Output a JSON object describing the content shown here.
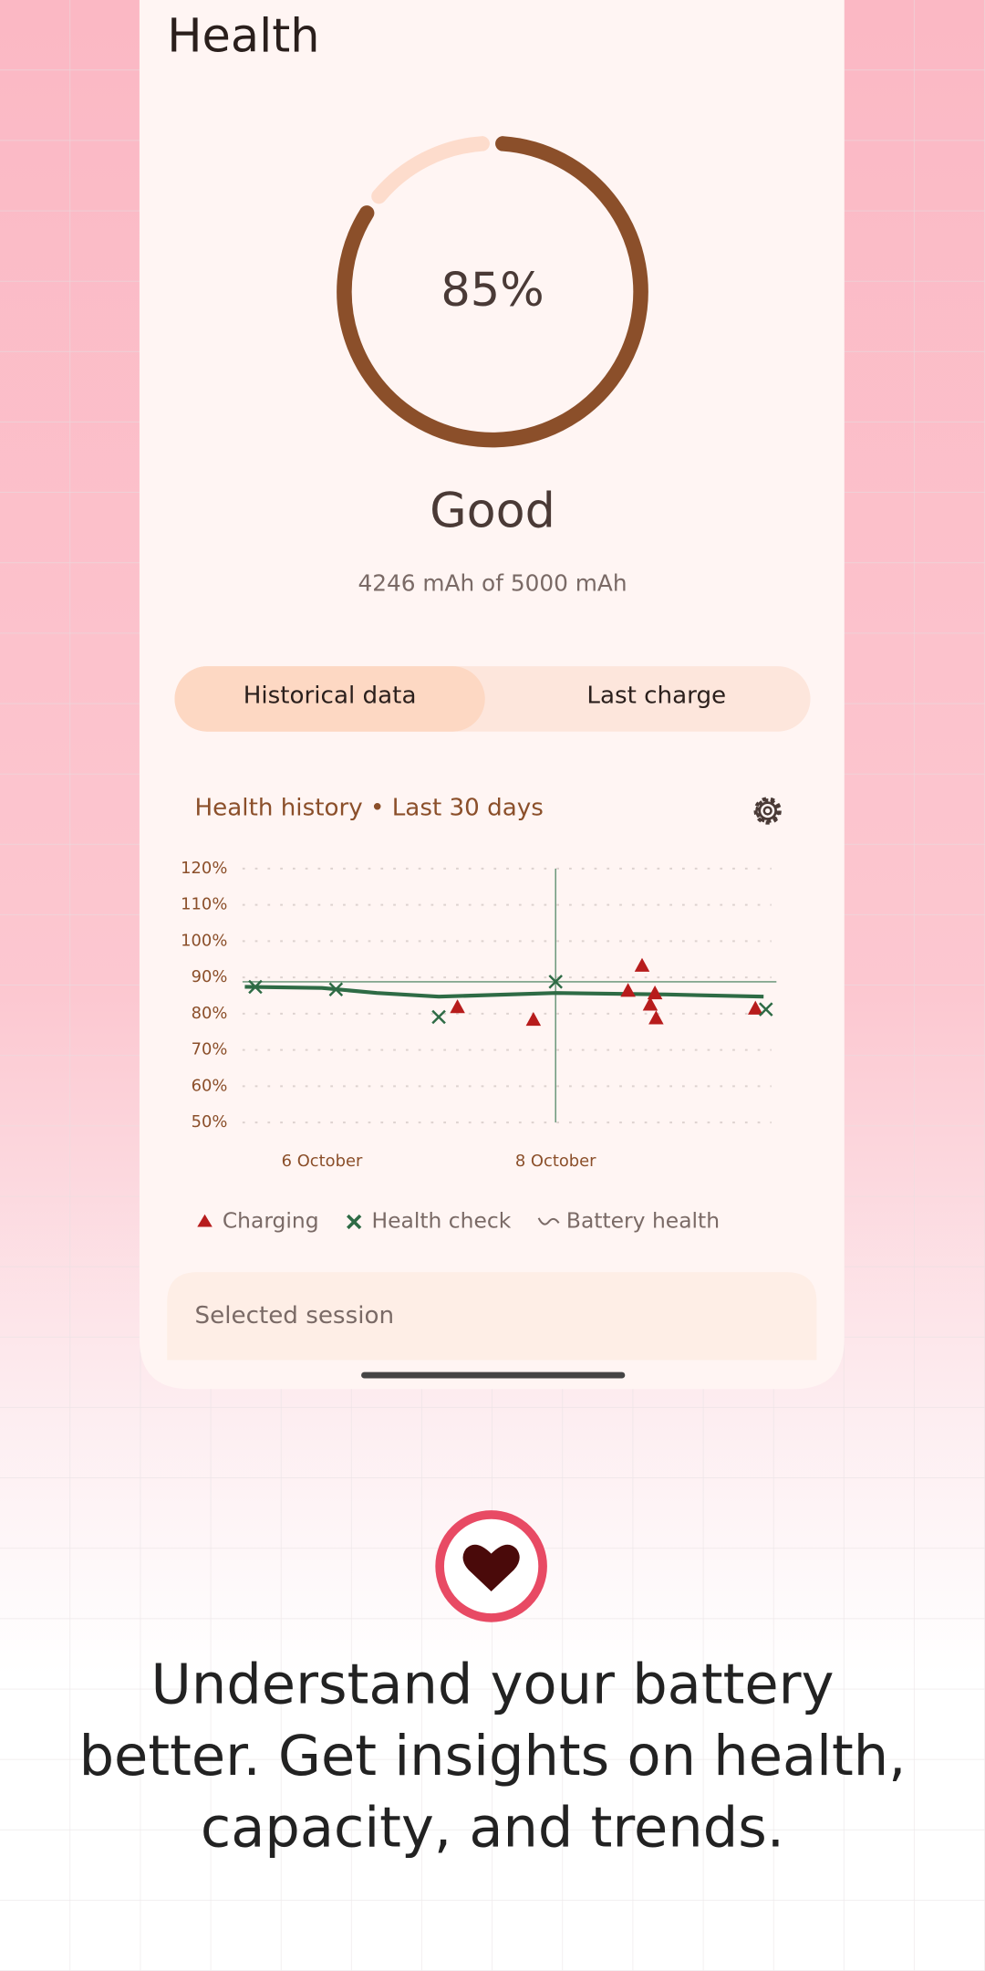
{
  "header": {
    "title": "Health"
  },
  "gauge": {
    "value": 85,
    "label": "85%",
    "status": "Good",
    "capacity": "4246 mAh of 5000 mAh"
  },
  "tabs": [
    {
      "label": "Historical data",
      "selected": true
    },
    {
      "label": "Last charge",
      "selected": false
    }
  ],
  "chart_data": {
    "type": "scatter",
    "title": "Health history • Last 30 days",
    "xlim": [
      5.32,
      9.89
    ],
    "xticks": [
      {
        "value": 6,
        "label": "6 October"
      },
      {
        "value": 8,
        "label": "8 October"
      }
    ],
    "ylim": [
      50,
      120
    ],
    "yticks": [
      {
        "value": 50,
        "label": "50%"
      },
      {
        "value": 60,
        "label": "60%"
      },
      {
        "value": 70,
        "label": "70%"
      },
      {
        "value": 80,
        "label": "80%"
      },
      {
        "value": 90,
        "label": "90%"
      },
      {
        "value": 100,
        "label": "100%"
      },
      {
        "value": 110,
        "label": "110%"
      },
      {
        "value": 120,
        "label": "120%"
      }
    ],
    "grid": true,
    "series": [
      {
        "name": "Charging",
        "color": "#b71c1c",
        "marker": "triangle",
        "x": [
          7.16,
          7.81,
          8.62,
          8.74,
          8.81,
          8.85,
          8.86,
          9.71
        ],
        "values": [
          81.9,
          78.4,
          86.4,
          93.3,
          82.6,
          85.7,
          78.8,
          81.5
        ]
      },
      {
        "name": "Health check",
        "color": "#2e6b45",
        "marker": "x",
        "x": [
          5.43,
          6.12,
          7.0,
          8.0,
          9.8
        ],
        "values": [
          87.4,
          86.7,
          79.1,
          88.8,
          81.2
        ]
      },
      {
        "name": "Battery health",
        "color": "#2e6b45",
        "marker": "line",
        "x": [
          5.34,
          6.0,
          6.47,
          7.0,
          8.0,
          8.95,
          9.78
        ],
        "values": [
          87.4,
          87.1,
          85.7,
          84.7,
          85.7,
          85.3,
          84.7
        ]
      }
    ]
  },
  "selected_session": {
    "label": "Selected session"
  },
  "tagline": "Understand your battery better. Get insights on health, capacity, and trends."
}
